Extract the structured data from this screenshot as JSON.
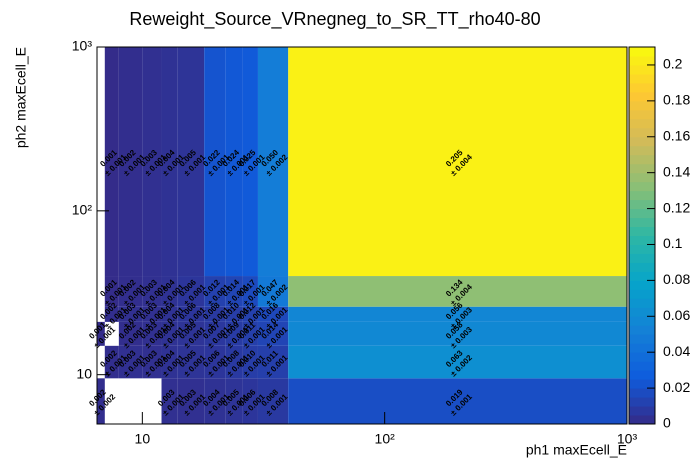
{
  "chart_data": {
    "type": "heatmap",
    "title": "Reweight_Source_VRnegneg_to_SR_TT_rho40-80",
    "xlabel": "ph1 maxEcell_E",
    "ylabel": "ph2 maxEcell_E",
    "xlog": true,
    "ylog": true,
    "xlim": [
      6.5,
      1000
    ],
    "ylim": [
      5,
      1000
    ],
    "xticks": [
      10,
      {
        "value": 100,
        "label": "10²"
      },
      {
        "value": 1000,
        "label": "10³"
      }
    ],
    "yticks": [
      10,
      {
        "value": 100,
        "label": "10²"
      },
      {
        "value": 1000,
        "label": "10³"
      }
    ],
    "xedges": [
      6.5,
      7,
      8,
      10,
      12,
      14,
      18,
      22,
      26,
      30,
      40,
      1000
    ],
    "yedges": [
      5,
      9.5,
      15,
      21,
      26,
      40,
      1000
    ],
    "z": [
      [
        0.002,
        null,
        null,
        null,
        0.003,
        0.003,
        0.004,
        0.005,
        0.006,
        0.008,
        0.019
      ],
      [
        null,
        0.002,
        0.003,
        0.003,
        0.004,
        0.005,
        0.006,
        0.008,
        0.01,
        0.011,
        0.063
      ],
      [
        0.001,
        null,
        0.002,
        0.003,
        0.004,
        0.005,
        0.007,
        0.009,
        0.011,
        0.014,
        0.058
      ],
      [
        null,
        0.002,
        0.003,
        0.003,
        0.004,
        0.006,
        0.008,
        0.01,
        0.012,
        0.016,
        0.056
      ],
      [
        null,
        0.001,
        0.002,
        0.003,
        0.004,
        0.006,
        0.012,
        0.014,
        0.017,
        0.047,
        0.134
      ],
      [
        null,
        0.001,
        0.002,
        0.003,
        0.004,
        0.005,
        0.022,
        0.024,
        0.025,
        0.05,
        0.205
      ]
    ],
    "value_labels": [
      [
        "0.002",
        null,
        null,
        null,
        "0.003",
        "0.003",
        "0.004",
        "0.005",
        "0.006",
        "0.008",
        "0.019"
      ],
      [
        null,
        "0.002",
        "0.003",
        "0.003",
        "0.004",
        "0.005",
        "0.006",
        "0.008",
        "0.010",
        "0.011",
        "0.063"
      ],
      [
        "0.001",
        null,
        "0.002",
        "0.003",
        "0.004",
        "0.005",
        "0.007",
        "0.009",
        "0.011",
        "0.014",
        "0.058"
      ],
      [
        null,
        "0.002",
        "0.003",
        "0.003",
        "0.004",
        "0.006",
        "0.008",
        "0.010",
        "0.012",
        "0.016",
        "0.056"
      ],
      [
        null,
        "0.001",
        "0.002",
        "0.003",
        "0.004",
        "0.006",
        "0.012",
        "0.014",
        "0.017",
        "0.047",
        "0.134"
      ],
      [
        null,
        "0.001",
        "0.002",
        "0.003",
        "0.004",
        "0.005",
        "0.022",
        "0.024",
        "0.025",
        "0.050",
        "0.205"
      ]
    ],
    "errors": [
      [
        0.002,
        null,
        null,
        null,
        0.001,
        0.001,
        0.001,
        0.001,
        0.001,
        0.001,
        0.001
      ],
      [
        null,
        0.001,
        0.001,
        0.001,
        0.001,
        0.001,
        0.001,
        0.001,
        0.001,
        0.001,
        0.002
      ],
      [
        0.001,
        null,
        0.001,
        0.001,
        0.001,
        0.001,
        0.001,
        0.001,
        0.001,
        0.001,
        0.003
      ],
      [
        null,
        0.001,
        0.001,
        0.001,
        0.001,
        0.001,
        0.001,
        0.001,
        0.001,
        0.001,
        0.003
      ],
      [
        null,
        0.001,
        0.001,
        0.001,
        0.001,
        0.001,
        0.001,
        0.001,
        0.001,
        0.002,
        0.004
      ],
      [
        null,
        0.001,
        0.001,
        0.001,
        0.001,
        0.001,
        0.001,
        0.001,
        0.001,
        0.002,
        0.004
      ]
    ],
    "error_labels": [
      [
        "± 0.002",
        null,
        null,
        null,
        "± 0.001",
        "± 0.001",
        "± 0.001",
        "± 0.001",
        "± 0.001",
        "± 0.001",
        "± 0.001"
      ],
      [
        null,
        "± 0.001",
        "± 0.001",
        "± 0.001",
        "± 0.001",
        "± 0.001",
        "± 0.001",
        "± 0.001",
        "± 0.001",
        "± 0.001",
        "± 0.002"
      ],
      [
        "± 0.001",
        null,
        "± 0.001",
        "± 0.001",
        "± 0.001",
        "± 0.001",
        "± 0.001",
        "± 0.001",
        "± 0.001",
        "± 0.001",
        "± 0.003"
      ],
      [
        null,
        "± 0.001",
        "± 0.001",
        "± 0.001",
        "± 0.001",
        "± 0.001",
        "± 0.001",
        "± 0.001",
        "± 0.001",
        "± 0.001",
        "± 0.003"
      ],
      [
        null,
        "± 0.001",
        "± 0.001",
        "± 0.001",
        "± 0.001",
        "± 0.001",
        "± 0.001",
        "± 0.001",
        "± 0.001",
        "± 0.002",
        "± 0.004"
      ],
      [
        null,
        "± 0.001",
        "± 0.001",
        "± 0.001",
        "± 0.001",
        "± 0.001",
        "± 0.001",
        "± 0.001",
        "± 0.001",
        "± 0.002",
        "± 0.004"
      ]
    ],
    "zlim": [
      0,
      0.21
    ],
    "zticks": [
      0,
      0.02,
      0.04,
      0.06,
      0.08,
      0.1,
      0.12,
      0.14,
      0.16,
      0.18,
      0.2
    ],
    "colorscale": [
      "#352a87",
      "#0f5cdd",
      "#1481d6",
      "#06a4ca",
      "#2eb7a4",
      "#87bf77",
      "#d1bb59",
      "#fec832",
      "#f9fb0e"
    ]
  }
}
